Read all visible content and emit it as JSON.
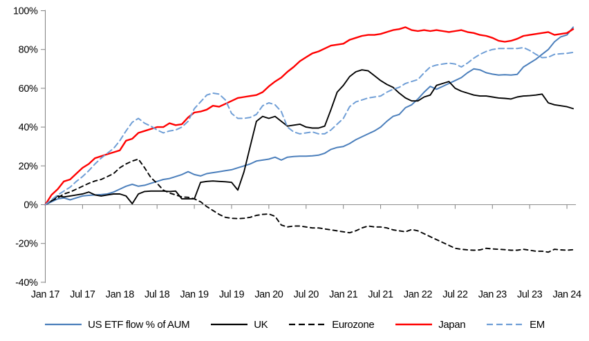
{
  "chart_data": {
    "type": "line",
    "title": "",
    "xlabel": "",
    "ylabel": "",
    "ylim": [
      -40,
      100
    ],
    "grid": "zero-line-only",
    "legend_position": "bottom",
    "axis_color": "#808080",
    "zero_line_color": "#8c8c8c",
    "x_unit": "months since Jan 2017",
    "x_ticks": [
      {
        "label": "Jan 17",
        "month": 0
      },
      {
        "label": "Jul 17",
        "month": 6
      },
      {
        "label": "Jan 18",
        "month": 12
      },
      {
        "label": "Jul 18",
        "month": 18
      },
      {
        "label": "Jan 19",
        "month": 24
      },
      {
        "label": "Jul 19",
        "month": 30
      },
      {
        "label": "Jan 20",
        "month": 36
      },
      {
        "label": "Jul 20",
        "month": 42
      },
      {
        "label": "Jan 21",
        "month": 48
      },
      {
        "label": "Jul 21",
        "month": 54
      },
      {
        "label": "Jan 22",
        "month": 60
      },
      {
        "label": "Jul 22",
        "month": 66
      },
      {
        "label": "Jan 23",
        "month": 72
      },
      {
        "label": "Jul 23",
        "month": 78
      },
      {
        "label": "Jan 24",
        "month": 84
      }
    ],
    "y_ticks": [
      {
        "label": "100%",
        "value": 100
      },
      {
        "label": "80%",
        "value": 80
      },
      {
        "label": "60%",
        "value": 60
      },
      {
        "label": "40%",
        "value": 40
      },
      {
        "label": "20%",
        "value": 20
      },
      {
        "label": "0%",
        "value": 0
      },
      {
        "label": "-20%",
        "value": -20
      },
      {
        "label": "-40%",
        "value": -40
      }
    ],
    "series": [
      {
        "name": "US ETF flow % of AUM",
        "color": "#4a7ebb",
        "dash": null,
        "width": 2,
        "values": [
          0,
          1.5,
          3,
          3.5,
          2.5,
          3.5,
          4.5,
          4.8,
          5,
          5.2,
          5.5,
          6.5,
          8,
          9.5,
          10.5,
          9.5,
          10,
          11,
          12,
          13,
          13.5,
          14.5,
          15.5,
          17,
          15.5,
          14.8,
          16,
          16.5,
          17,
          17.5,
          18,
          19,
          20,
          21,
          22.5,
          23,
          23.5,
          24.5,
          23,
          24.5,
          24.8,
          25,
          25,
          25.2,
          25.5,
          26.5,
          28.5,
          29.5,
          30,
          31.5,
          33.5,
          35,
          36.5,
          38,
          40,
          43,
          45.5,
          46.5,
          50,
          51.5,
          54.5,
          58,
          61,
          59.5,
          61,
          62.5,
          64,
          65.5,
          68,
          70,
          69.5,
          68,
          67.3,
          66.8,
          67,
          66.8,
          67.2,
          71,
          73,
          75,
          77.5,
          80,
          84,
          86.5,
          87.5,
          91.5
        ]
      },
      {
        "name": "UK",
        "color": "#000000",
        "dash": null,
        "width": 1.9,
        "values": [
          0,
          2,
          4.5,
          4,
          4.5,
          5,
          5.5,
          6.5,
          5,
          4.5,
          5,
          5.5,
          5.5,
          4.5,
          0.5,
          5.5,
          6.8,
          7,
          7,
          7,
          6.8,
          7,
          3,
          3,
          3,
          11.5,
          12,
          12.2,
          12,
          11.8,
          11.5,
          7.5,
          17,
          30,
          43,
          45.5,
          44.5,
          45.5,
          43,
          40.5,
          41,
          41.5,
          40,
          39.5,
          39.5,
          40.5,
          49,
          58,
          61.5,
          66,
          68.5,
          69.5,
          69,
          66.5,
          64,
          62,
          60.5,
          57.5,
          55,
          53.5,
          53.5,
          55.5,
          56.5,
          61.5,
          62.5,
          63.5,
          60,
          58.5,
          57.5,
          56.5,
          56,
          56,
          55.5,
          55,
          54.8,
          54.5,
          55.5,
          56,
          56.2,
          56.5,
          57,
          52.5,
          51.5,
          51,
          50.5,
          49.5
        ]
      },
      {
        "name": "Eurozone",
        "color": "#000000",
        "dash": "6 5",
        "width": 1.9,
        "values": [
          0,
          2,
          3.5,
          5.5,
          6.5,
          8,
          9.5,
          11,
          12.2,
          13,
          14.5,
          16,
          19,
          21,
          22.5,
          23.5,
          19,
          14,
          11,
          7.5,
          6,
          5,
          4,
          3.8,
          3,
          1.5,
          -1,
          -3,
          -5,
          -6.5,
          -7,
          -7.2,
          -7,
          -6.5,
          -5.5,
          -5,
          -4.8,
          -6,
          -10.5,
          -11.5,
          -11,
          -11,
          -11.5,
          -12,
          -12,
          -12.5,
          -13,
          -13.5,
          -14,
          -14.5,
          -13.5,
          -12,
          -11,
          -11.5,
          -11.5,
          -12,
          -13,
          -13.5,
          -14,
          -12.8,
          -13.5,
          -15,
          -16.5,
          -18,
          -19.5,
          -21,
          -22.5,
          -23,
          -23.3,
          -23.5,
          -23.3,
          -22.5,
          -22.8,
          -23,
          -23.2,
          -23.5,
          -23.5,
          -23,
          -23.5,
          -24,
          -24,
          -24.5,
          -23,
          -23.3,
          -23.5,
          -23.2
        ]
      },
      {
        "name": "Japan",
        "color": "#ff0000",
        "dash": null,
        "width": 2.4,
        "values": [
          0,
          5,
          8,
          12,
          13,
          16,
          19,
          21,
          24,
          25,
          26,
          27,
          28,
          33,
          34,
          37,
          38,
          39,
          40,
          40,
          42,
          41,
          41.5,
          45,
          47.5,
          48,
          49,
          51,
          50.5,
          52,
          53.5,
          55,
          55.5,
          56,
          56.5,
          58,
          61,
          63.5,
          65.5,
          68.5,
          71,
          74,
          76,
          78,
          79,
          80.5,
          82,
          82.5,
          83,
          85,
          86,
          87,
          87.5,
          87.5,
          88,
          89,
          90,
          90.5,
          91.5,
          90,
          89.5,
          90,
          89.5,
          90,
          89.5,
          89,
          89.5,
          90,
          89,
          88.5,
          87.5,
          87,
          86,
          84.5,
          84,
          84.5,
          85.5,
          87,
          87.5,
          88,
          88.5,
          89,
          87.5,
          88,
          88.5,
          90.5
        ]
      },
      {
        "name": "EM",
        "color": "#6f9ed6",
        "dash": "8 5",
        "width": 2,
        "values": [
          0,
          2.5,
          5,
          7,
          9,
          12,
          14.5,
          17.5,
          21,
          24,
          26.5,
          29,
          33,
          38,
          42.5,
          44.5,
          42,
          40.5,
          38.5,
          37,
          38,
          38.5,
          40,
          43,
          49.5,
          53,
          56.5,
          57.5,
          57,
          54,
          47,
          44.5,
          44.5,
          45,
          46.5,
          51,
          52.5,
          51.5,
          48,
          40,
          37.5,
          36.5,
          37,
          37.5,
          36.5,
          36.5,
          38.5,
          41.5,
          44.5,
          50.5,
          53,
          54,
          55,
          55.5,
          56,
          58,
          59.5,
          60.5,
          62.5,
          63.5,
          64.5,
          68,
          71,
          72,
          72.5,
          73,
          72.5,
          71,
          73,
          75.5,
          77.5,
          79,
          80,
          80.5,
          80.5,
          80.5,
          80.5,
          81,
          79.5,
          77.5,
          75.8,
          76,
          77.5,
          77.8,
          78,
          78.5
        ]
      }
    ]
  }
}
